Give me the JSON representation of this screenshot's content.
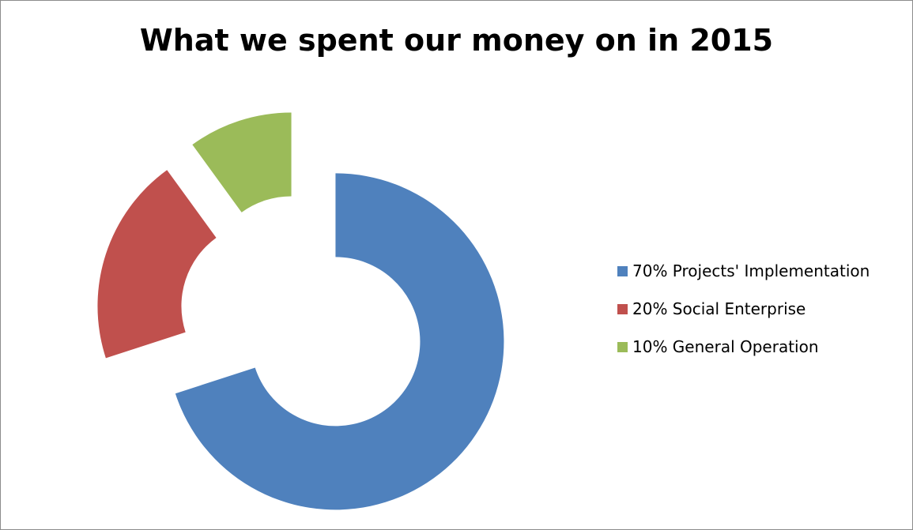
{
  "chart_data": {
    "type": "pie",
    "subtype": "doughnut",
    "title": "What we spent our money on in 2015",
    "categories": [
      "70% Projects' Implementation",
      "20% Social Enterprise",
      "10% General Operation"
    ],
    "values": [
      70,
      20,
      10
    ],
    "colors": [
      "#4f81bd",
      "#c0504d",
      "#9bbb59"
    ],
    "exploded": true,
    "legend": {
      "position": "right",
      "entries": [
        "70% Projects' Implementation",
        "20% Social Enterprise",
        "10% General Operation"
      ]
    }
  }
}
